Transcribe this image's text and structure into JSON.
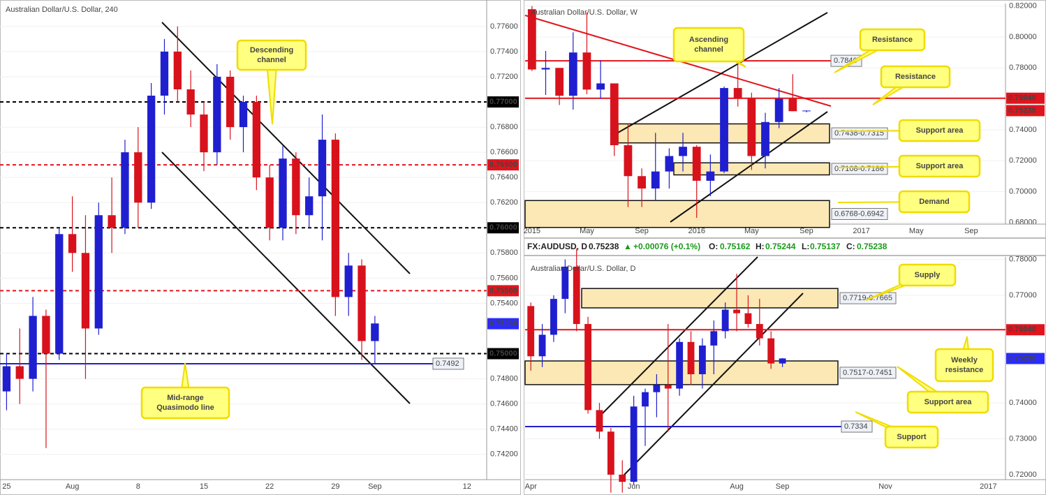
{
  "chart_data": [
    {
      "type": "candlestick",
      "title": "Australian Dollar/U.S. Dollar, 240",
      "categories": [
        "25",
        null,
        null,
        null,
        null,
        "Aug",
        null,
        null,
        null,
        null,
        "8",
        null,
        null,
        null,
        null,
        "15",
        null,
        null,
        null,
        null,
        "22",
        null,
        null,
        null,
        null,
        "29",
        null,
        null,
        "Sep",
        null,
        null,
        null,
        null,
        null,
        null,
        "12",
        null
      ],
      "open": [
        0.747,
        0.749,
        0.748,
        0.753,
        0.75,
        0.7595,
        0.758,
        0.752,
        0.761,
        0.76,
        0.766,
        0.762,
        0.7705,
        0.774,
        0.771,
        0.769,
        0.766,
        0.772,
        0.768,
        0.77,
        0.764,
        0.76,
        0.7655,
        0.761,
        0.7625,
        0.767,
        0.7545,
        0.757,
        0.751,
        null,
        null,
        null,
        null,
        null,
        null,
        null,
        null
      ],
      "high": [
        0.75,
        0.752,
        0.7545,
        0.7535,
        0.76,
        0.7625,
        0.761,
        0.762,
        0.764,
        0.767,
        0.768,
        0.7715,
        0.775,
        0.776,
        0.7725,
        0.77,
        0.773,
        0.7725,
        0.7705,
        0.7705,
        0.765,
        0.7665,
        0.766,
        0.764,
        0.769,
        0.7675,
        0.758,
        0.7575,
        0.753,
        null,
        null,
        null,
        null,
        null,
        null,
        null,
        null
      ],
      "low": [
        0.7455,
        0.746,
        0.747,
        0.7425,
        0.7495,
        0.7565,
        0.748,
        0.7515,
        0.758,
        0.7595,
        0.76,
        0.7615,
        0.769,
        0.77,
        0.768,
        0.7645,
        0.765,
        0.767,
        0.766,
        0.763,
        0.759,
        0.759,
        0.7595,
        0.76,
        0.759,
        0.753,
        0.753,
        0.7495,
        0.7492,
        null,
        null,
        null,
        null,
        null,
        null,
        null,
        null
      ],
      "close": [
        0.749,
        0.748,
        0.753,
        0.75,
        0.7595,
        0.758,
        0.752,
        0.761,
        0.76,
        0.766,
        0.762,
        0.7705,
        0.774,
        0.771,
        0.769,
        0.766,
        0.772,
        0.768,
        0.77,
        0.764,
        0.76,
        0.7655,
        0.761,
        0.7625,
        0.767,
        0.7545,
        0.757,
        0.751,
        0.7524,
        null,
        null,
        null,
        null,
        null,
        null,
        null,
        null
      ],
      "up_color": "#1f1fd0",
      "down_color": "#d8121c",
      "ylim": [
        0.7401,
        0.7781
      ],
      "yticks": [
        {
          "value": 0.742,
          "label": "0.74200"
        },
        {
          "value": 0.744,
          "label": "0.74400"
        },
        {
          "value": 0.746,
          "label": "0.74600"
        },
        {
          "value": 0.748,
          "label": "0.74800"
        },
        {
          "value": 0.754,
          "label": "0.75400"
        },
        {
          "value": 0.756,
          "label": "0.75600"
        },
        {
          "value": 0.758,
          "label": "0.75800"
        },
        {
          "value": 0.762,
          "label": "0.76200"
        },
        {
          "value": 0.764,
          "label": "0.76400"
        },
        {
          "value": 0.766,
          "label": "0.76600"
        },
        {
          "value": 0.768,
          "label": "0.76800"
        },
        {
          "value": 0.772,
          "label": "0.77200"
        },
        {
          "value": 0.774,
          "label": "0.77400"
        },
        {
          "value": 0.776,
          "label": "0.77600"
        }
      ],
      "levels": [
        {
          "value": 0.77,
          "label": "0.77000",
          "color": "#000000",
          "line": "dashed",
          "tag": "axis"
        },
        {
          "value": 0.765,
          "label": "0.76500",
          "color": "#e0141c",
          "line": "dashed",
          "tag": "axis"
        },
        {
          "value": 0.76,
          "label": "0.76000",
          "color": "#000000",
          "line": "dashed",
          "tag": "axis"
        },
        {
          "value": 0.755,
          "label": "0.75500",
          "color": "#e0141c",
          "line": "dashed",
          "tag": "axis"
        },
        {
          "value": 0.75,
          "label": "0.75000",
          "color": "#000000",
          "line": "dashed",
          "tag": "axis"
        },
        {
          "value": 0.7492,
          "color": "#2020c8",
          "line": "solid",
          "tag": "plot"
        },
        {
          "value": 0.75238,
          "color": "#2b2bff",
          "line": "none",
          "tag": "axis"
        }
      ],
      "zones": [],
      "annotations": [
        {
          "lines": [
            "Descending",
            "channel"
          ]
        },
        {
          "lines": [
            "Mid-range",
            "Quasimodo line"
          ]
        }
      ]
    },
    {
      "type": "candlestick",
      "title": "Australian Dollar/U.S. Dollar, W",
      "categories": [
        "2015",
        null,
        null,
        null,
        "May",
        null,
        null,
        null,
        "Sep",
        null,
        null,
        null,
        "2016",
        null,
        null,
        null,
        "May",
        null,
        null,
        null,
        "Sep",
        null,
        null,
        null,
        "2017",
        null,
        null,
        null,
        "May",
        null,
        null,
        null,
        "Sep",
        null,
        null
      ],
      "open": [
        0.818,
        0.779,
        0.78,
        0.762,
        0.79,
        0.766,
        0.77,
        0.73,
        0.71,
        0.702,
        0.713,
        0.723,
        0.729,
        0.707,
        0.713,
        0.767,
        0.76,
        0.723,
        0.745,
        0.76,
        0.752,
        null,
        null,
        null,
        null,
        null,
        null,
        null,
        null,
        null,
        null,
        null,
        null,
        null,
        null
      ],
      "high": [
        0.82,
        0.791,
        0.78,
        0.803,
        0.816,
        0.785,
        0.77,
        0.744,
        0.715,
        0.738,
        0.728,
        0.738,
        0.73,
        0.724,
        0.768,
        0.783,
        0.764,
        0.751,
        0.767,
        0.776,
        0.7525,
        null,
        null,
        null,
        null,
        null,
        null,
        null,
        null,
        null,
        null,
        null,
        null,
        null,
        null
      ],
      "low": [
        0.778,
        0.7625,
        0.756,
        0.753,
        0.763,
        0.76,
        0.723,
        0.69,
        0.69,
        0.694,
        0.702,
        0.713,
        0.683,
        0.697,
        0.712,
        0.755,
        0.714,
        0.715,
        0.741,
        0.752,
        0.7513,
        null,
        null,
        null,
        null,
        null,
        null,
        null,
        null,
        null,
        null,
        null,
        null,
        null,
        null
      ],
      "close": [
        0.779,
        0.78,
        0.762,
        0.79,
        0.766,
        0.77,
        0.73,
        0.71,
        0.702,
        0.713,
        0.723,
        0.729,
        0.707,
        0.713,
        0.767,
        0.76,
        0.723,
        0.745,
        0.76,
        0.752,
        0.7524,
        null,
        null,
        null,
        null,
        null,
        null,
        null,
        null,
        null,
        null,
        null,
        null,
        null,
        null
      ],
      "up_color": "#1f1fd0",
      "down_color": "#d8121c",
      "ylim": [
        0.6794,
        0.8217
      ],
      "yticks": [
        {
          "value": 0.68,
          "label": "0.68000"
        },
        {
          "value": 0.7,
          "label": "0.70000"
        },
        {
          "value": 0.72,
          "label": "0.72000"
        },
        {
          "value": 0.74,
          "label": "0.74000"
        },
        {
          "value": 0.78,
          "label": "0.78000"
        },
        {
          "value": 0.8,
          "label": "0.80000"
        },
        {
          "value": 0.82,
          "label": "0.82000"
        }
      ],
      "levels": [
        {
          "value": 0.7846,
          "color": "#e0141c",
          "line": "solid",
          "tag": "plot"
        },
        {
          "value": 0.7604,
          "label": "0.76040",
          "color": "#e0141c",
          "line": "solid",
          "tag": "axis"
        },
        {
          "value": 0.75238,
          "color": "#e0141c",
          "line": "none",
          "tag": "axis"
        }
      ],
      "zones": [
        {
          "high": 0.7438,
          "low": 0.7315,
          "label": "0.7438-0.7315"
        },
        {
          "high": 0.7186,
          "low": 0.7108,
          "label": "0.7108-0.7186"
        },
        {
          "high": 0.6942,
          "low": 0.6768,
          "label": "0.6768-0.6942"
        }
      ],
      "annotations": [
        {
          "lines": [
            "Ascending",
            "channel"
          ]
        },
        {
          "lines": [
            "Resistance"
          ]
        },
        {
          "lines": [
            "Resistance"
          ]
        },
        {
          "lines": [
            "Support area"
          ]
        },
        {
          "lines": [
            "Support area"
          ]
        },
        {
          "lines": [
            "Demand"
          ]
        }
      ]
    },
    {
      "type": "candlestick",
      "title": "Australian Dollar/U.S. Dollar, D",
      "categories": [
        "Apr",
        null,
        null,
        null,
        null,
        null,
        null,
        null,
        null,
        "Jun",
        null,
        null,
        null,
        null,
        null,
        null,
        null,
        null,
        "Aug",
        null,
        null,
        null,
        "Sep",
        null,
        null,
        null,
        null,
        null,
        null,
        null,
        null,
        "Nov",
        null,
        null,
        null,
        null,
        null,
        null,
        null,
        null,
        "2017",
        null
      ],
      "open": [
        0.767,
        0.753,
        0.759,
        0.769,
        0.778,
        0.762,
        0.738,
        0.732,
        0.72,
        0.718,
        0.739,
        0.743,
        0.745,
        0.744,
        0.757,
        0.748,
        0.756,
        0.76,
        0.766,
        0.765,
        0.762,
        0.758,
        0.751,
        null,
        null,
        null,
        null,
        null,
        null,
        null,
        null,
        null,
        null,
        null,
        null,
        null,
        null,
        null,
        null,
        null,
        null,
        null
      ],
      "high": [
        0.768,
        0.762,
        0.77,
        0.78,
        0.783,
        0.764,
        0.74,
        0.733,
        0.724,
        0.742,
        0.744,
        0.748,
        0.762,
        0.758,
        0.76,
        0.758,
        0.763,
        0.768,
        0.776,
        0.77,
        0.769,
        0.76,
        0.7525,
        null,
        null,
        null,
        null,
        null,
        null,
        null,
        null,
        null,
        null,
        null,
        null,
        null,
        null,
        null,
        null,
        null,
        null,
        null
      ],
      "low": [
        0.749,
        0.75,
        0.757,
        0.765,
        0.76,
        0.737,
        0.73,
        0.715,
        0.715,
        0.717,
        0.728,
        0.736,
        0.732,
        0.742,
        0.745,
        0.744,
        0.748,
        0.758,
        0.76,
        0.761,
        0.756,
        0.7495,
        0.75,
        null,
        null,
        null,
        null,
        null,
        null,
        null,
        null,
        null,
        null,
        null,
        null,
        null,
        null,
        null,
        null,
        null,
        null,
        null
      ],
      "close": [
        0.753,
        0.759,
        0.769,
        0.778,
        0.762,
        0.738,
        0.732,
        0.72,
        0.718,
        0.739,
        0.743,
        0.745,
        0.744,
        0.757,
        0.748,
        0.756,
        0.76,
        0.766,
        0.765,
        0.762,
        0.758,
        0.751,
        0.7524,
        null,
        null,
        null,
        null,
        null,
        null,
        null,
        null,
        null,
        null,
        null,
        null,
        null,
        null,
        null,
        null,
        null,
        null,
        null
      ],
      "up_color": "#1f1fd0",
      "down_color": "#d8121c",
      "ylim": [
        0.719,
        0.7807
      ],
      "yticks": [
        {
          "value": 0.72,
          "label": "0.72000"
        },
        {
          "value": 0.73,
          "label": "0.73000"
        },
        {
          "value": 0.74,
          "label": "0.74000"
        },
        {
          "value": 0.77,
          "label": "0.77000"
        },
        {
          "value": 0.78,
          "label": "0.78000"
        }
      ],
      "levels": [
        {
          "value": 0.7604,
          "label": "0.76040",
          "color": "#e0141c",
          "line": "solid",
          "tag": "axis"
        },
        {
          "value": 0.7334,
          "color": "#2020c8",
          "line": "solid",
          "tag": "plot"
        },
        {
          "value": 0.75238,
          "color": "#2b2bff",
          "line": "none",
          "tag": "axis"
        }
      ],
      "zones": [
        {
          "high": 0.7719,
          "low": 0.7665,
          "label": "0.7719-0.7665"
        },
        {
          "high": 0.7517,
          "low": 0.7451,
          "label": "0.7517-0.7451"
        }
      ],
      "annotations": [
        {
          "lines": [
            "Supply"
          ]
        },
        {
          "lines": [
            "Weekly",
            "resistance"
          ]
        },
        {
          "lines": [
            "Support area"
          ]
        },
        {
          "lines": [
            "Support"
          ]
        }
      ]
    }
  ],
  "ticker_bar": {
    "symbol": "FX:AUDUSD, D",
    "last": "0.75238",
    "arrow": "▲",
    "change": "+0.00076 (+0.1%)",
    "o_label": "O:",
    "o": "0.75162",
    "h_label": "H:",
    "h": "0.75244",
    "l_label": "L:",
    "l": "0.75137",
    "c_label": "C:",
    "c": "0.75238"
  }
}
